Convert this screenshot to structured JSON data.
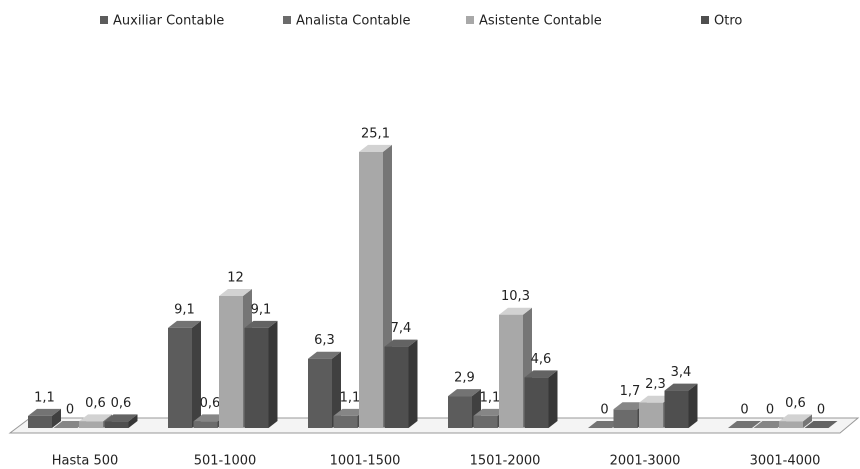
{
  "chart_data": {
    "type": "bar3d",
    "categories": [
      "Hasta 500",
      "501-1000",
      "1001-1500",
      "1501-2000",
      "2001-3000",
      "3001-4000"
    ],
    "series": [
      {
        "name": "Auxiliar Contable",
        "color": "#5c5c5c",
        "values": [
          1.1,
          9.1,
          6.3,
          2.9,
          0,
          0
        ],
        "value_labels": [
          "1,1",
          "9,1",
          "6,3",
          "2,9",
          "0",
          "0"
        ]
      },
      {
        "name": "Analista Contable",
        "color": "#6b6b6b",
        "values": [
          0,
          0.6,
          1.1,
          1.1,
          1.7,
          0
        ],
        "value_labels": [
          "0",
          "0,6",
          "1,1",
          "1,1",
          "1,7",
          "0"
        ]
      },
      {
        "name": "Asistente Contable",
        "color": "#a8a8a8",
        "values": [
          0.6,
          12,
          25.1,
          10.3,
          2.3,
          0.6
        ],
        "value_labels": [
          "0,6",
          "12",
          "25,1",
          "10,3",
          "2,3",
          "0,6"
        ]
      },
      {
        "name": "Otro",
        "color": "#4f4f4f",
        "values": [
          0.6,
          9.1,
          7.4,
          4.6,
          3.4,
          0
        ],
        "value_labels": [
          "0,6",
          "9,1",
          "7,4",
          "4,6",
          "3,4",
          "0"
        ]
      }
    ],
    "ylim": [
      0,
      28
    ],
    "legend": "top"
  }
}
